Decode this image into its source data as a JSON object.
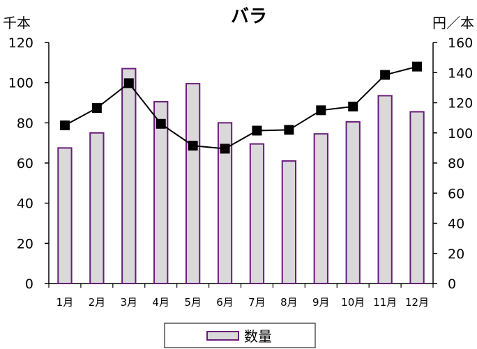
{
  "chart_data": {
    "type": "bar",
    "title": "バラ",
    "left_unit": "千本",
    "right_unit": "円／本",
    "categories": [
      "1月",
      "2月",
      "3月",
      "4月",
      "5月",
      "6月",
      "7月",
      "8月",
      "9月",
      "10月",
      "11月",
      "12月"
    ],
    "y_left": {
      "min": 0,
      "max": 120,
      "ticks": [
        "0",
        "20",
        "40",
        "60",
        "80",
        "100",
        "120"
      ]
    },
    "y_right": {
      "min": 0,
      "max": 160,
      "ticks": [
        "0",
        "20",
        "40",
        "60",
        "80",
        "100",
        "120",
        "140",
        "160"
      ]
    },
    "series": [
      {
        "name": "数量",
        "kind": "bar",
        "axis": "left",
        "fill": "#d9d9d9",
        "stroke": "#6a1b7a",
        "values": [
          67.5,
          75,
          107,
          90.5,
          99.5,
          80,
          69.5,
          61,
          74.5,
          80.5,
          93.5,
          85.5
        ]
      },
      {
        "kind": "line",
        "axis": "right",
        "color": "#000000",
        "values": [
          105,
          116.5,
          133,
          106,
          91.5,
          89.5,
          101.5,
          102,
          115,
          117.5,
          138.5,
          144
        ]
      }
    ],
    "legend_position": "bottom-center"
  }
}
